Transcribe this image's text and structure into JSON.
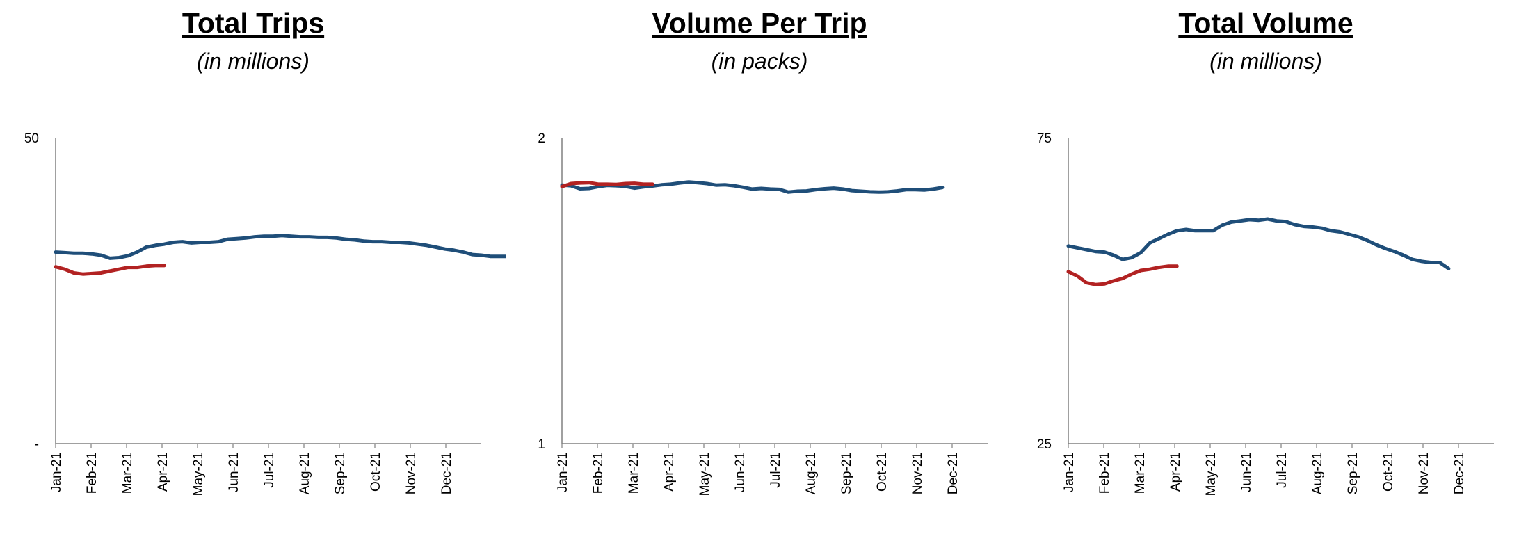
{
  "colors": {
    "series_2021": "#1f4e79",
    "series_2022": "#b22222",
    "axis": "#808080"
  },
  "chart_data": [
    {
      "type": "line",
      "title": "Total Trips",
      "subtitle": "(in millions)",
      "ylim": [
        0,
        50
      ],
      "y_tick_labels": [
        "-",
        "50"
      ],
      "x_tick_labels": [
        "Jan-21",
        "Feb-21",
        "Mar-21",
        "Apr-21",
        "May-21",
        "Jun-21",
        "Jul-21",
        "Aug-21",
        "Sep-21",
        "Oct-21",
        "Nov-21",
        "Dec-21"
      ],
      "x_count": 48,
      "legend": "none",
      "grid": false,
      "series": [
        {
          "color": "#1f4e79",
          "values": [
            31.3,
            31.2,
            31.1,
            31.1,
            31.0,
            30.8,
            30.3,
            30.4,
            30.7,
            31.3,
            32.1,
            32.4,
            32.6,
            32.9,
            33.0,
            32.8,
            32.9,
            32.9,
            33.0,
            33.4,
            33.5,
            33.6,
            33.8,
            33.9,
            33.9,
            34.0,
            33.9,
            33.8,
            33.8,
            33.7,
            33.7,
            33.6,
            33.4,
            33.3,
            33.1,
            33.0,
            33.0,
            32.9,
            32.9,
            32.8,
            32.6,
            32.4,
            32.1,
            31.8,
            31.6,
            31.3,
            30.9,
            30.8,
            30.6,
            30.6,
            30.6,
            30.2
          ]
        },
        {
          "color": "#b22222",
          "values": [
            28.9,
            28.5,
            27.9,
            27.7,
            27.8,
            27.9,
            28.2,
            28.5,
            28.8,
            28.8,
            29.0,
            29.1,
            29.1
          ]
        }
      ]
    },
    {
      "type": "line",
      "title": "Volume Per Trip",
      "subtitle": "(in packs)",
      "ylim": [
        1,
        2
      ],
      "y_tick_labels": [
        "1",
        "2"
      ],
      "x_tick_labels": [
        "Jan-21",
        "Feb-21",
        "Mar-21",
        "Apr-21",
        "May-21",
        "Jun-21",
        "Jul-21",
        "Aug-21",
        "Sep-21",
        "Oct-21",
        "Nov-21",
        "Dec-21"
      ],
      "x_count": 48,
      "legend": "none",
      "grid": false,
      "series": [
        {
          "color": "#1f4e79",
          "values": [
            1.845,
            1.843,
            1.833,
            1.834,
            1.84,
            1.844,
            1.843,
            1.841,
            1.835,
            1.839,
            1.842,
            1.846,
            1.848,
            1.852,
            1.855,
            1.853,
            1.85,
            1.845,
            1.846,
            1.843,
            1.838,
            1.832,
            1.834,
            1.832,
            1.831,
            1.822,
            1.825,
            1.826,
            1.83,
            1.833,
            1.835,
            1.832,
            1.827,
            1.825,
            1.823,
            1.822,
            1.823,
            1.826,
            1.83,
            1.83,
            1.829,
            1.832,
            1.837
          ]
        },
        {
          "color": "#b22222",
          "values": [
            1.84,
            1.85,
            1.852,
            1.853,
            1.848,
            1.848,
            1.847,
            1.85,
            1.851,
            1.848,
            1.848
          ]
        }
      ]
    },
    {
      "type": "line",
      "title": "Total Volume",
      "subtitle": "(in millions)",
      "ylim": [
        25,
        75
      ],
      "y_tick_labels": [
        "25",
        "75"
      ],
      "x_tick_labels": [
        "Jan-21",
        "Feb-21",
        "Mar-21",
        "Apr-21",
        "May-21",
        "Jun-21",
        "Jul-21",
        "Aug-21",
        "Sep-21",
        "Oct-21",
        "Nov-21",
        "Dec-21"
      ],
      "x_count": 48,
      "legend": "none",
      "grid": false,
      "series": [
        {
          "color": "#1f4e79",
          "values": [
            57.3,
            57.0,
            56.7,
            56.4,
            56.3,
            55.8,
            55.1,
            55.4,
            56.2,
            57.8,
            58.5,
            59.2,
            59.8,
            60.0,
            59.8,
            59.8,
            59.8,
            60.7,
            61.2,
            61.4,
            61.6,
            61.5,
            61.7,
            61.4,
            61.3,
            60.8,
            60.5,
            60.4,
            60.2,
            59.8,
            59.6,
            59.2,
            58.8,
            58.2,
            57.5,
            56.9,
            56.4,
            55.8,
            55.1,
            54.8,
            54.6,
            54.6,
            53.6
          ]
        },
        {
          "color": "#b22222",
          "values": [
            53.1,
            52.4,
            51.3,
            51.0,
            51.1,
            51.6,
            52.0,
            52.7,
            53.3,
            53.5,
            53.8,
            54.0,
            54.0
          ]
        }
      ]
    }
  ]
}
